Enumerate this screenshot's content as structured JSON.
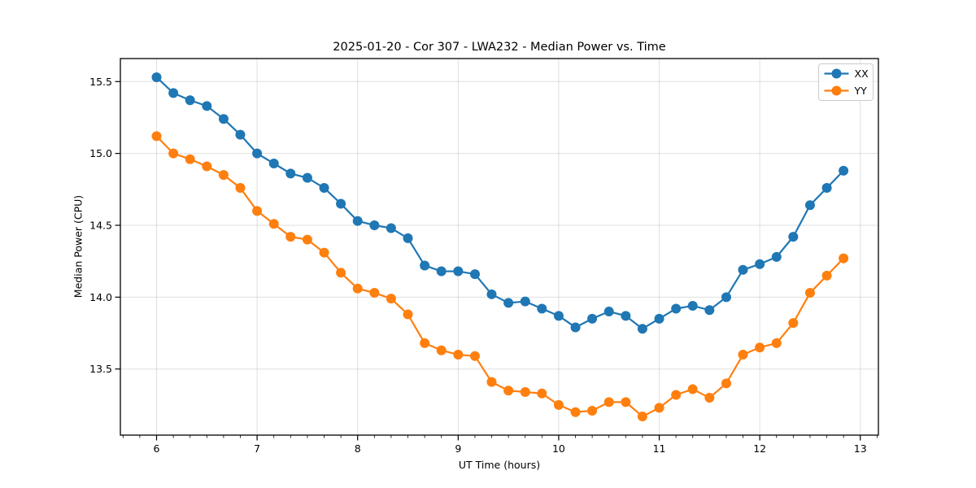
{
  "chart_data": {
    "type": "line",
    "title": "2025-01-20 - Cor 307 - LWA232 - Median Power vs. Time",
    "xlabel": "UT Time (hours)",
    "ylabel": "Median Power (CPU)",
    "xlim": [
      5.64,
      13.18
    ],
    "ylim": [
      13.04,
      15.66
    ],
    "x_major_ticks": [
      6,
      7,
      8,
      9,
      10,
      11,
      12,
      13
    ],
    "x_minor_ticks_per_interval": 5,
    "y_major_ticks": [
      13.5,
      14.0,
      14.5,
      15.0,
      15.5
    ],
    "grid": true,
    "legend": {
      "position": "upper right",
      "entries": [
        "XX",
        "YY"
      ]
    },
    "x": [
      6.0,
      6.167,
      6.333,
      6.5,
      6.667,
      6.833,
      7.0,
      7.167,
      7.333,
      7.5,
      7.667,
      7.833,
      8.0,
      8.167,
      8.333,
      8.5,
      8.667,
      8.833,
      9.0,
      9.167,
      9.333,
      9.5,
      9.667,
      9.833,
      10.0,
      10.167,
      10.333,
      10.5,
      10.667,
      10.833,
      11.0,
      11.167,
      11.333,
      11.5,
      11.667,
      11.833,
      12.0,
      12.167,
      12.333,
      12.5,
      12.667,
      12.833
    ],
    "series": [
      {
        "name": "XX",
        "color": "#1f77b4",
        "marker": "circle",
        "values": [
          15.53,
          15.42,
          15.37,
          15.33,
          15.24,
          15.13,
          15.0,
          14.93,
          14.86,
          14.83,
          14.76,
          14.65,
          14.53,
          14.5,
          14.48,
          14.41,
          14.22,
          14.18,
          14.18,
          14.16,
          14.02,
          13.96,
          13.97,
          13.92,
          13.87,
          13.79,
          13.85,
          13.9,
          13.87,
          13.78,
          13.85,
          13.92,
          13.94,
          13.91,
          14.0,
          14.19,
          14.23,
          14.28,
          14.42,
          14.64,
          14.76,
          14.88
        ]
      },
      {
        "name": "YY",
        "color": "#ff7f0e",
        "marker": "circle",
        "values": [
          15.12,
          15.0,
          14.96,
          14.91,
          14.85,
          14.76,
          14.6,
          14.51,
          14.42,
          14.4,
          14.31,
          14.17,
          14.06,
          14.03,
          13.99,
          13.88,
          13.68,
          13.63,
          13.6,
          13.59,
          13.41,
          13.35,
          13.34,
          13.33,
          13.25,
          13.2,
          13.21,
          13.27,
          13.27,
          13.17,
          13.23,
          13.32,
          13.36,
          13.3,
          13.4,
          13.6,
          13.65,
          13.68,
          13.82,
          14.03,
          14.15,
          14.27
        ]
      }
    ]
  },
  "style": {
    "background": "#ffffff",
    "grid_color": "rgba(176,176,176,0.4)",
    "spine_color": "#000000",
    "text_color": "#000000",
    "legend_border": "#cccccc",
    "legend_fill": "rgba(255,255,255,0.85)"
  }
}
